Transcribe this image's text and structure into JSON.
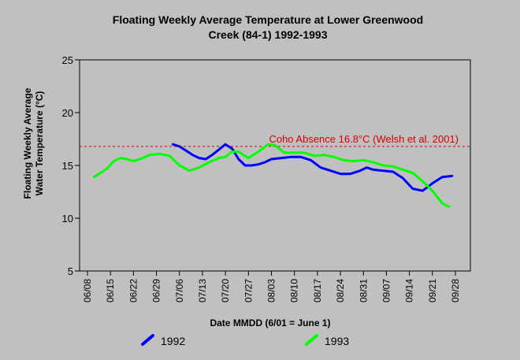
{
  "chart_data": {
    "type": "line",
    "title_line1": "Floating Weekly Average Temperature at Lower Greenwood",
    "title_line2": "Creek (84-1) 1992-1993",
    "xlabel": "Date MMDD (6/01 = June 1)",
    "ylabel_line1": "Floating Weekly Average",
    "ylabel_line2": "Water Temperature (°C)",
    "ylim": [
      5,
      25
    ],
    "yticks": [
      "5",
      "10",
      "15",
      "20",
      "25"
    ],
    "xticks": [
      "06/08",
      "06/15",
      "06/22",
      "06/29",
      "07/06",
      "07/13",
      "07/20",
      "07/27",
      "08/03",
      "08/10",
      "08/17",
      "08/24",
      "08/31",
      "09/07",
      "09/14",
      "09/21",
      "09/28"
    ],
    "grid": false,
    "legend_position": "bottom",
    "threshold": {
      "value": 16.8,
      "label": "Coho Absence 16.8°C (Welsh et al. 2001)",
      "color": "#d40000"
    },
    "series": [
      {
        "name": "1992",
        "color": "#0000ff",
        "points": [
          [
            "07/04",
            17.0
          ],
          [
            "07/06",
            16.8
          ],
          [
            "07/08",
            16.4
          ],
          [
            "07/10",
            16.0
          ],
          [
            "07/12",
            15.7
          ],
          [
            "07/14",
            15.6
          ],
          [
            "07/16",
            16.0
          ],
          [
            "07/18",
            16.5
          ],
          [
            "07/20",
            17.0
          ],
          [
            "07/22",
            16.6
          ],
          [
            "07/24",
            15.6
          ],
          [
            "07/26",
            15.0
          ],
          [
            "07/28",
            15.0
          ],
          [
            "07/30",
            15.1
          ],
          [
            "08/01",
            15.3
          ],
          [
            "08/03",
            15.6
          ],
          [
            "08/06",
            15.7
          ],
          [
            "08/09",
            15.8
          ],
          [
            "08/12",
            15.8
          ],
          [
            "08/15",
            15.5
          ],
          [
            "08/18",
            14.8
          ],
          [
            "08/21",
            14.5
          ],
          [
            "08/24",
            14.2
          ],
          [
            "08/27",
            14.2
          ],
          [
            "08/30",
            14.5
          ],
          [
            "09/01",
            14.8
          ],
          [
            "09/03",
            14.6
          ],
          [
            "09/06",
            14.5
          ],
          [
            "09/09",
            14.4
          ],
          [
            "09/12",
            13.8
          ],
          [
            "09/15",
            12.8
          ],
          [
            "09/18",
            12.6
          ],
          [
            "09/21",
            13.3
          ],
          [
            "09/24",
            13.9
          ],
          [
            "09/27",
            14.0
          ]
        ]
      },
      {
        "name": "1993",
        "color": "#00ff00",
        "points": [
          [
            "06/10",
            13.9
          ],
          [
            "06/12",
            14.3
          ],
          [
            "06/14",
            14.7
          ],
          [
            "06/16",
            15.4
          ],
          [
            "06/18",
            15.7
          ],
          [
            "06/20",
            15.6
          ],
          [
            "06/22",
            15.4
          ],
          [
            "06/24",
            15.6
          ],
          [
            "06/27",
            16.0
          ],
          [
            "06/30",
            16.1
          ],
          [
            "07/03",
            15.9
          ],
          [
            "07/06",
            15.0
          ],
          [
            "07/09",
            14.5
          ],
          [
            "07/12",
            14.8
          ],
          [
            "07/15",
            15.3
          ],
          [
            "07/18",
            15.7
          ],
          [
            "07/20",
            15.8
          ],
          [
            "07/22",
            16.3
          ],
          [
            "07/24",
            16.3
          ],
          [
            "07/27",
            15.7
          ],
          [
            "07/30",
            16.3
          ],
          [
            "08/02",
            17.0
          ],
          [
            "08/04",
            16.9
          ],
          [
            "08/07",
            16.2
          ],
          [
            "08/10",
            16.2
          ],
          [
            "08/13",
            16.2
          ],
          [
            "08/16",
            15.9
          ],
          [
            "08/19",
            16.0
          ],
          [
            "08/22",
            15.8
          ],
          [
            "08/25",
            15.5
          ],
          [
            "08/28",
            15.4
          ],
          [
            "08/31",
            15.5
          ],
          [
            "09/03",
            15.3
          ],
          [
            "09/06",
            15.0
          ],
          [
            "09/09",
            14.9
          ],
          [
            "09/12",
            14.6
          ],
          [
            "09/15",
            14.3
          ],
          [
            "09/18",
            13.5
          ],
          [
            "09/21",
            12.6
          ],
          [
            "09/24",
            11.4
          ],
          [
            "09/26",
            11.1
          ]
        ]
      }
    ]
  }
}
